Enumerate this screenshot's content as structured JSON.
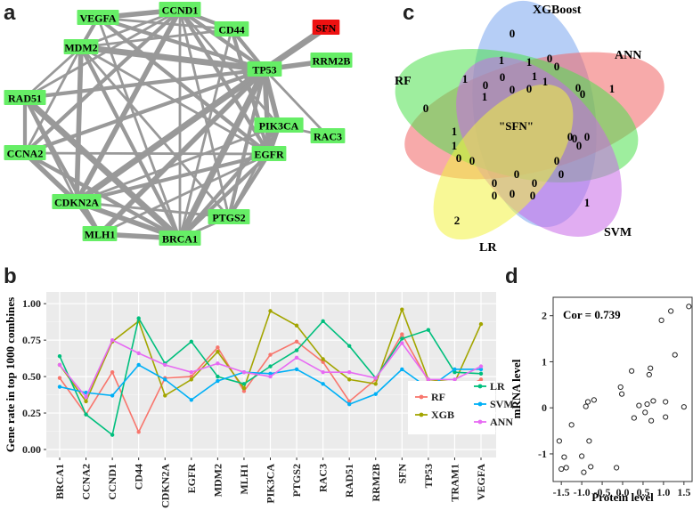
{
  "panels": {
    "a": "a",
    "b": "b",
    "c": "c",
    "d": "d"
  },
  "network": {
    "nodes": [
      {
        "id": "VEGFA",
        "label": "VEGFA",
        "highlight": false
      },
      {
        "id": "CCND1",
        "label": "CCND1",
        "highlight": false
      },
      {
        "id": "CD44",
        "label": "CD44",
        "highlight": false
      },
      {
        "id": "SFN",
        "label": "SFN",
        "highlight": true
      },
      {
        "id": "MDM2",
        "label": "MDM2",
        "highlight": false
      },
      {
        "id": "RRM2B",
        "label": "RRM2B",
        "highlight": false
      },
      {
        "id": "TP53",
        "label": "TP53",
        "highlight": false
      },
      {
        "id": "RAD51",
        "label": "RAD51",
        "highlight": false
      },
      {
        "id": "PIK3CA",
        "label": "PIK3CA",
        "highlight": false
      },
      {
        "id": "RAC3",
        "label": "RAC3",
        "highlight": false
      },
      {
        "id": "CCNA2",
        "label": "CCNA2",
        "highlight": false
      },
      {
        "id": "EGFR",
        "label": "EGFR",
        "highlight": false
      },
      {
        "id": "CDKN2A",
        "label": "CDKN2A",
        "highlight": false
      },
      {
        "id": "PTGS2",
        "label": "PTGS2",
        "highlight": false
      },
      {
        "id": "MLH1",
        "label": "MLH1",
        "highlight": false
      },
      {
        "id": "BRCA1",
        "label": "BRCA1",
        "highlight": false
      }
    ],
    "colors": {
      "node": "#66ee66",
      "highlight": "#ee1111",
      "edge": "#999999"
    }
  },
  "venn": {
    "sets": [
      "XGBoost",
      "ANN",
      "RF",
      "SVM",
      "LR"
    ],
    "center_label": "\"SFN\"",
    "region_values": [
      "0",
      "1",
      "1",
      "0",
      "0",
      "1",
      "1",
      "1",
      "0",
      "0",
      "0",
      "1",
      "1",
      "0",
      "0",
      "0",
      "1",
      "0",
      "1",
      "0",
      "0",
      "0",
      "0",
      "0",
      "1",
      "0",
      "0",
      "0",
      "0",
      "0",
      "0",
      "2",
      "0",
      "0",
      "0"
    ]
  },
  "chart_data": {
    "type": "line",
    "title": "",
    "xlabel": "",
    "ylabel": "Gene rate in top 1000 combines",
    "ylim": [
      0,
      1.05
    ],
    "yticks": [
      "0.00",
      "0.25",
      "0.50",
      "0.75",
      "1.00"
    ],
    "categories": [
      "BRCA1",
      "CCNA2",
      "CCND1",
      "CD44",
      "CDKN2A",
      "EGFR",
      "MDM2",
      "MLH1",
      "PIK3CA",
      "PTGS2",
      "RAC3",
      "RAD51",
      "RRM2B",
      "SFN",
      "TP53",
      "TRAM1",
      "VEGFA"
    ],
    "series": [
      {
        "name": "RF",
        "color": "#f8766d",
        "values": [
          0.49,
          0.24,
          0.53,
          0.12,
          0.49,
          0.5,
          0.7,
          0.4,
          0.65,
          0.74,
          0.6,
          0.33,
          0.48,
          0.79,
          0.47,
          0.39,
          0.48
        ]
      },
      {
        "name": "XGB",
        "color": "#a3a500",
        "values": [
          0.58,
          0.33,
          0.74,
          0.88,
          0.37,
          0.48,
          0.67,
          0.42,
          0.95,
          0.85,
          0.62,
          0.48,
          0.45,
          0.96,
          0.48,
          0.46,
          0.86
        ]
      },
      {
        "name": "LR",
        "color": "#00bf7d",
        "values": [
          0.64,
          0.24,
          0.1,
          0.9,
          0.59,
          0.74,
          0.5,
          0.45,
          0.57,
          0.68,
          0.88,
          0.71,
          0.49,
          0.76,
          0.82,
          0.53,
          0.52
        ]
      },
      {
        "name": "SVM",
        "color": "#00b0f6",
        "values": [
          0.43,
          0.39,
          0.37,
          0.58,
          0.48,
          0.34,
          0.47,
          0.53,
          0.52,
          0.55,
          0.45,
          0.31,
          0.38,
          0.55,
          0.42,
          0.55,
          0.55
        ]
      },
      {
        "name": "ANN",
        "color": "#e76bf3",
        "values": [
          0.58,
          0.36,
          0.75,
          0.66,
          0.58,
          0.53,
          0.59,
          0.53,
          0.5,
          0.63,
          0.53,
          0.53,
          0.49,
          0.73,
          0.48,
          0.48,
          0.57
        ]
      }
    ],
    "legend_position": "bottom-right"
  },
  "scatter": {
    "annotation": "Cor = 0.739",
    "xlabel": "Protein level",
    "ylabel": "mRNA level",
    "xticks": [
      "-1.5",
      "-1.0",
      "-0.5",
      "0.0",
      "0.5",
      "1.0",
      "1.5"
    ],
    "yticks": [
      "-1",
      "0",
      "1",
      "2"
    ],
    "xlim": [
      -1.7,
      1.7
    ],
    "ylim": [
      -1.6,
      2.4
    ],
    "points": [
      [
        -1.55,
        -0.72
      ],
      [
        -1.5,
        -1.33
      ],
      [
        -1.43,
        -1.07
      ],
      [
        -1.38,
        -1.3
      ],
      [
        -1.25,
        -0.37
      ],
      [
        -1.0,
        -1.05
      ],
      [
        -0.95,
        -1.4
      ],
      [
        -0.9,
        0.03
      ],
      [
        -0.85,
        0.13
      ],
      [
        -0.82,
        -0.72
      ],
      [
        -0.78,
        -1.28
      ],
      [
        -0.7,
        0.17
      ],
      [
        -0.15,
        -1.3
      ],
      [
        -0.05,
        0.45
      ],
      [
        -0.02,
        0.3
      ],
      [
        0.22,
        0.8
      ],
      [
        0.28,
        -0.22
      ],
      [
        0.4,
        0.05
      ],
      [
        0.55,
        -0.1
      ],
      [
        0.6,
        0.08
      ],
      [
        0.65,
        0.72
      ],
      [
        0.68,
        0.86
      ],
      [
        0.7,
        -0.28
      ],
      [
        0.75,
        0.15
      ],
      [
        0.95,
        1.9
      ],
      [
        1.05,
        0.13
      ],
      [
        1.05,
        -0.2
      ],
      [
        1.18,
        2.1
      ],
      [
        1.28,
        1.15
      ],
      [
        1.5,
        0.02
      ],
      [
        1.62,
        2.2
      ]
    ]
  }
}
